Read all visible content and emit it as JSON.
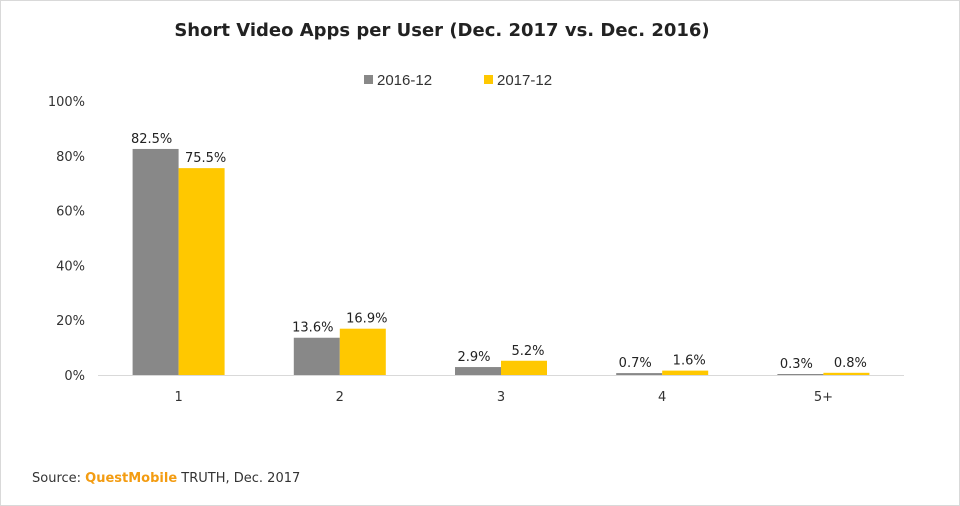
{
  "colors": {
    "series_2016": "#888888",
    "series_2017": "#ffc800",
    "brand": "#f39c12",
    "grid_axis": "#d9d9d9"
  },
  "source": {
    "prefix": "Source: ",
    "brand": "QuestMobile",
    "suffix": " TRUTH, Dec. 2017"
  },
  "chart_data": {
    "type": "bar",
    "title": "Short Video Apps per User (Dec. 2017 vs. Dec. 2016)",
    "categories": [
      "1",
      "2",
      "3",
      "4",
      "5+"
    ],
    "series": [
      {
        "name": "2016-12",
        "values": [
          82.5,
          13.6,
          2.9,
          0.7,
          0.3
        ],
        "labels": [
          "82.5%",
          "13.6%",
          "2.9%",
          "0.7%",
          "0.3%"
        ]
      },
      {
        "name": "2017-12",
        "values": [
          75.5,
          16.9,
          5.2,
          1.6,
          0.8
        ],
        "labels": [
          "75.5%",
          "16.9%",
          "5.2%",
          "1.6%",
          "0.8%"
        ]
      }
    ],
    "yticks": [
      "0%",
      "20%",
      "40%",
      "60%",
      "80%",
      "100%"
    ],
    "ylim": [
      0,
      100
    ],
    "grid": false,
    "legend_position": "top-center"
  }
}
